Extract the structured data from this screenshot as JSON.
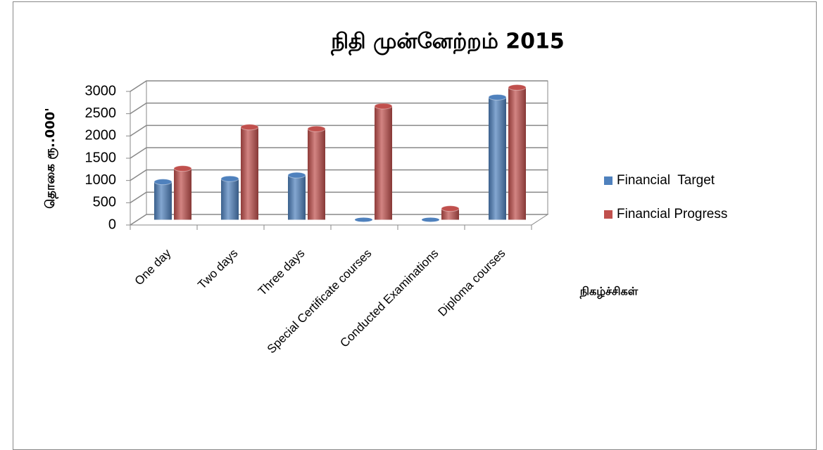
{
  "chart_data": {
    "type": "bar3d",
    "title": "நிதி  முன்னேற்றம்  2015",
    "ylabel": "தொகை ரூ..000'",
    "xlabel": "நிகழ்ச்சிகள்",
    "categories": [
      "One day",
      "Two days",
      "Three days",
      "Special Certificate courses",
      "Conducted Examinations",
      "Diploma courses"
    ],
    "series": [
      {
        "name": "Financial  Target",
        "color": "#4f81bd",
        "values": [
          850,
          920,
          1000,
          0,
          0,
          2750
        ]
      },
      {
        "name": "Financial Progress",
        "color": "#c0504d",
        "values": [
          1150,
          2080,
          2040,
          2550,
          250,
          2970
        ]
      }
    ],
    "ylim": [
      0,
      3000
    ],
    "yticks": [
      0,
      500,
      1000,
      1500,
      2000,
      2500,
      3000
    ],
    "grid": true,
    "legend": "right"
  }
}
